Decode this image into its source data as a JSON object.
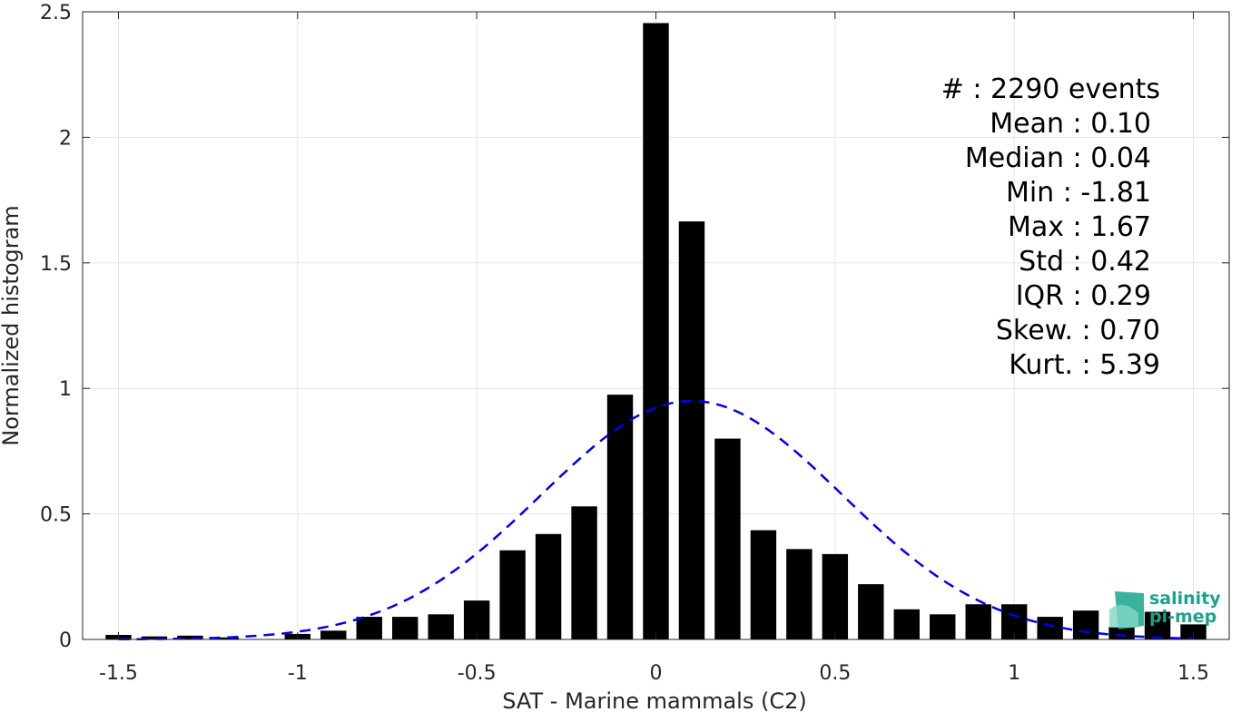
{
  "chart_data": {
    "type": "bar",
    "xlabel": "SAT - Marine mammals (C2)",
    "ylabel": "Normalized histogram",
    "xlim": [
      -1.6,
      1.6
    ],
    "ylim": [
      0,
      2.5
    ],
    "grid": true,
    "xticks": [
      "-1.5",
      "-1",
      "-0.5",
      "0",
      "0.5",
      "1",
      "1.5"
    ],
    "yticks": [
      "0",
      "0.5",
      "1",
      "1.5",
      "2",
      "2.5"
    ],
    "bar_color": "#000000",
    "bars": [
      {
        "x": -1.5,
        "y": 0.018
      },
      {
        "x": -1.4,
        "y": 0.012
      },
      {
        "x": -1.3,
        "y": 0.015
      },
      {
        "x": -1.2,
        "y": 0.008
      },
      {
        "x": -1.0,
        "y": 0.022
      },
      {
        "x": -0.9,
        "y": 0.035
      },
      {
        "x": -0.8,
        "y": 0.09
      },
      {
        "x": -0.7,
        "y": 0.09
      },
      {
        "x": -0.6,
        "y": 0.1
      },
      {
        "x": -0.5,
        "y": 0.155
      },
      {
        "x": -0.4,
        "y": 0.355
      },
      {
        "x": -0.3,
        "y": 0.42
      },
      {
        "x": -0.2,
        "y": 0.53
      },
      {
        "x": -0.1,
        "y": 0.975
      },
      {
        "x": 0.0,
        "y": 2.455
      },
      {
        "x": 0.1,
        "y": 1.665
      },
      {
        "x": 0.2,
        "y": 0.8
      },
      {
        "x": 0.3,
        "y": 0.435
      },
      {
        "x": 0.4,
        "y": 0.36
      },
      {
        "x": 0.5,
        "y": 0.34
      },
      {
        "x": 0.6,
        "y": 0.22
      },
      {
        "x": 0.7,
        "y": 0.12
      },
      {
        "x": 0.8,
        "y": 0.1
      },
      {
        "x": 0.9,
        "y": 0.14
      },
      {
        "x": 1.0,
        "y": 0.14
      },
      {
        "x": 1.1,
        "y": 0.09
      },
      {
        "x": 1.2,
        "y": 0.115
      },
      {
        "x": 1.3,
        "y": 0.05
      },
      {
        "x": 1.4,
        "y": 0.11
      },
      {
        "x": 1.5,
        "y": 0.06
      }
    ],
    "fit_curve": {
      "type": "normal",
      "mean": 0.1,
      "std": 0.42,
      "color": "#0000ee",
      "style": "dashed",
      "x_range": [
        -1.5,
        1.5
      ]
    },
    "stats": [
      "#  : 2290 events",
      "Mean : 0.10",
      "Median : 0.04",
      "Min : -1.81",
      "Max : 1.67",
      "Std : 0.42",
      "IQR : 0.29",
      "Skew. : 0.70",
      "Kurt. : 5.39"
    ]
  },
  "logo": {
    "line1": "salinity",
    "line2": "pi-mep",
    "color": "#1aa38a"
  }
}
